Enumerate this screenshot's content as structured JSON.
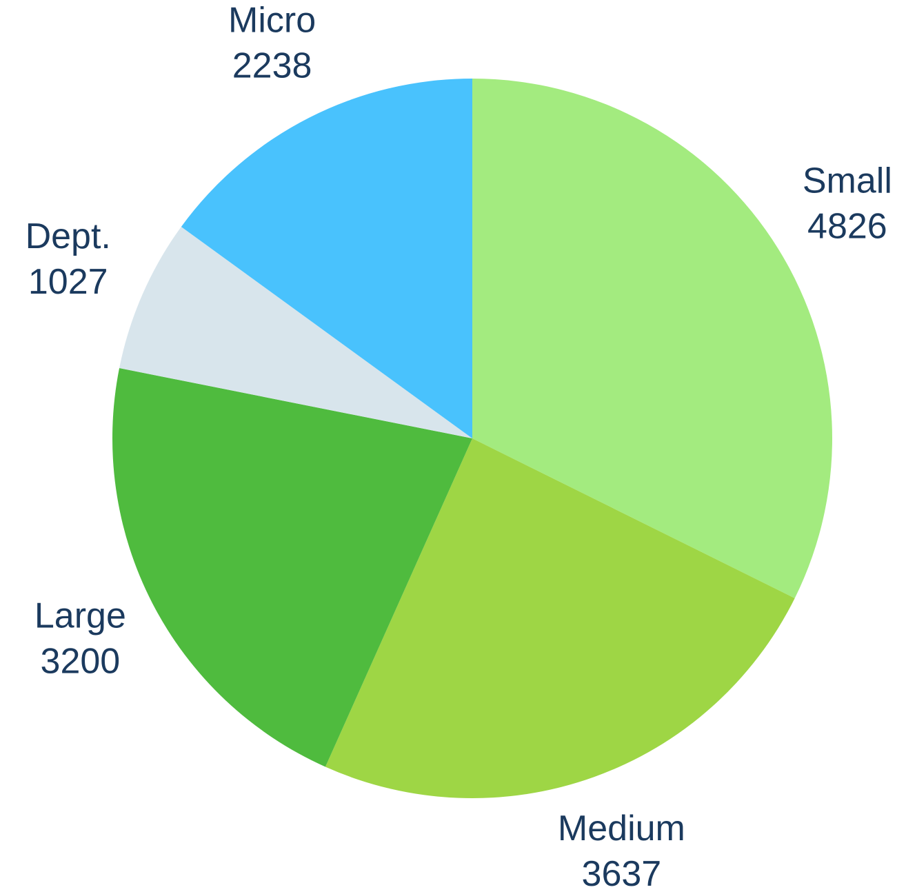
{
  "chart_data": {
    "type": "pie",
    "categories": [
      "Small",
      "Medium",
      "Large",
      "Dept.",
      "Micro"
    ],
    "values": [
      4826,
      3637,
      3200,
      1027,
      2238
    ],
    "colors": [
      "#a3eb7f",
      "#9ed645",
      "#4fbb3e",
      "#d8e5ec",
      "#49c2fd"
    ]
  }
}
